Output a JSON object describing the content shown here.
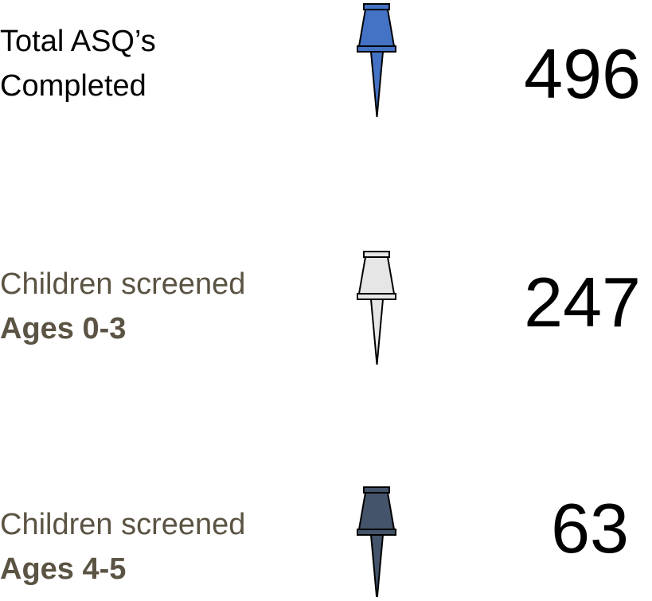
{
  "items": [
    {
      "label": [
        "Total ASQ’s",
        "Completed"
      ],
      "value": 496
    },
    {
      "label": [
        "Children screened",
        "Ages 0-3"
      ],
      "value": 247
    },
    {
      "label": [
        "Children screened",
        "Ages 4-5"
      ],
      "value": 63
    }
  ]
}
